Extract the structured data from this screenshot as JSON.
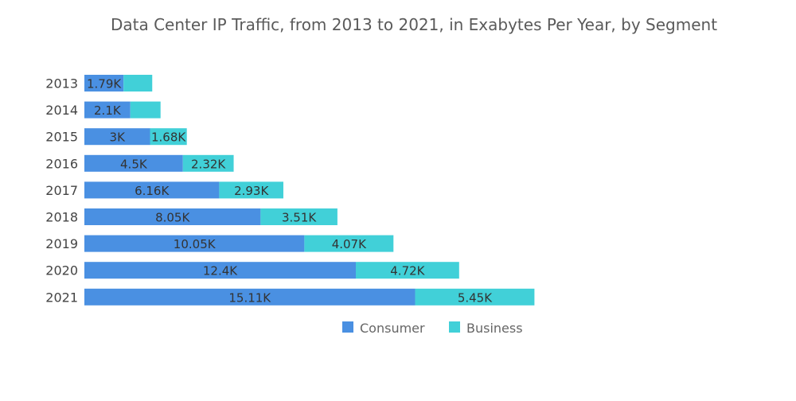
{
  "chart_data": {
    "type": "bar",
    "orientation": "horizontal",
    "stacked": true,
    "title": "Data Center IP Traffic, from 2013 to 2021, in Exabytes Per Year, by Segment",
    "xlabel": "",
    "ylabel": "",
    "categories": [
      "2013",
      "2014",
      "2015",
      "2016",
      "2017",
      "2018",
      "2019",
      "2020",
      "2021"
    ],
    "series": [
      {
        "name": "Consumer",
        "color": "#4a90e2",
        "values": [
          1.79,
          2.1,
          3.0,
          4.5,
          6.16,
          8.05,
          10.05,
          12.4,
          15.11
        ],
        "labels": [
          "1.79K",
          "2.1K",
          "3K",
          "4.5K",
          "6.16K",
          "8.05K",
          "10.05K",
          "12.4K",
          "15.11K"
        ]
      },
      {
        "name": "Business",
        "color": "#41d0d8",
        "values": [
          1.31,
          1.38,
          1.68,
          2.32,
          2.93,
          3.51,
          4.07,
          4.72,
          5.45
        ],
        "labels": [
          "",
          "",
          "1.68K",
          "2.32K",
          "2.93K",
          "3.51K",
          "4.07K",
          "4.72K",
          "5.45K"
        ]
      }
    ],
    "units": "thousand exabytes",
    "xlim": [
      0,
      21
    ],
    "grid": false,
    "legend": "bottom-center"
  }
}
